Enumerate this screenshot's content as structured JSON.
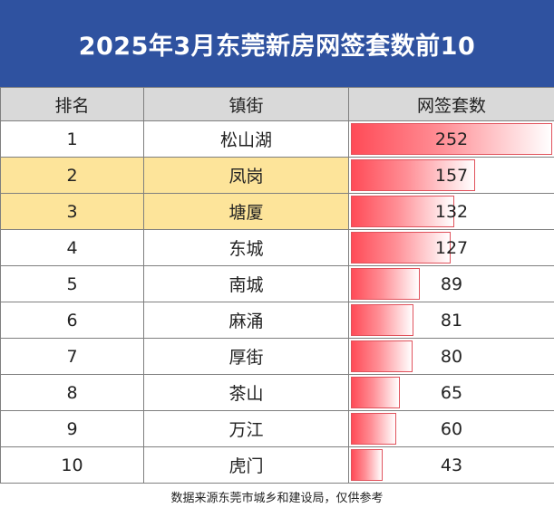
{
  "title": "2025年3月东莞新房网签套数前10",
  "headers": {
    "rank": "排名",
    "town": "镇街",
    "count": "网签套数"
  },
  "rows": [
    {
      "rank": "1",
      "town": "松山湖",
      "count": 252,
      "highlight": false
    },
    {
      "rank": "2",
      "town": "凤岗",
      "count": 157,
      "highlight": true
    },
    {
      "rank": "3",
      "town": "塘厦",
      "count": 132,
      "highlight": true
    },
    {
      "rank": "4",
      "town": "东城",
      "count": 127,
      "highlight": false
    },
    {
      "rank": "5",
      "town": "南城",
      "count": 89,
      "highlight": false
    },
    {
      "rank": "6",
      "town": "麻涌",
      "count": 81,
      "highlight": false
    },
    {
      "rank": "7",
      "town": "厚街",
      "count": 80,
      "highlight": false
    },
    {
      "rank": "8",
      "town": "茶山",
      "count": 65,
      "highlight": false
    },
    {
      "rank": "9",
      "town": "万江",
      "count": 60,
      "highlight": false
    },
    {
      "rank": "10",
      "town": "虎门",
      "count": 43,
      "highlight": false
    }
  ],
  "bar_max": 252,
  "source": "数据来源东莞市城乡和建设局，仅供参考",
  "colors": {
    "title_bg": "#2f52a0",
    "highlight": "#fde49a",
    "bar": "#ff4b57"
  }
}
